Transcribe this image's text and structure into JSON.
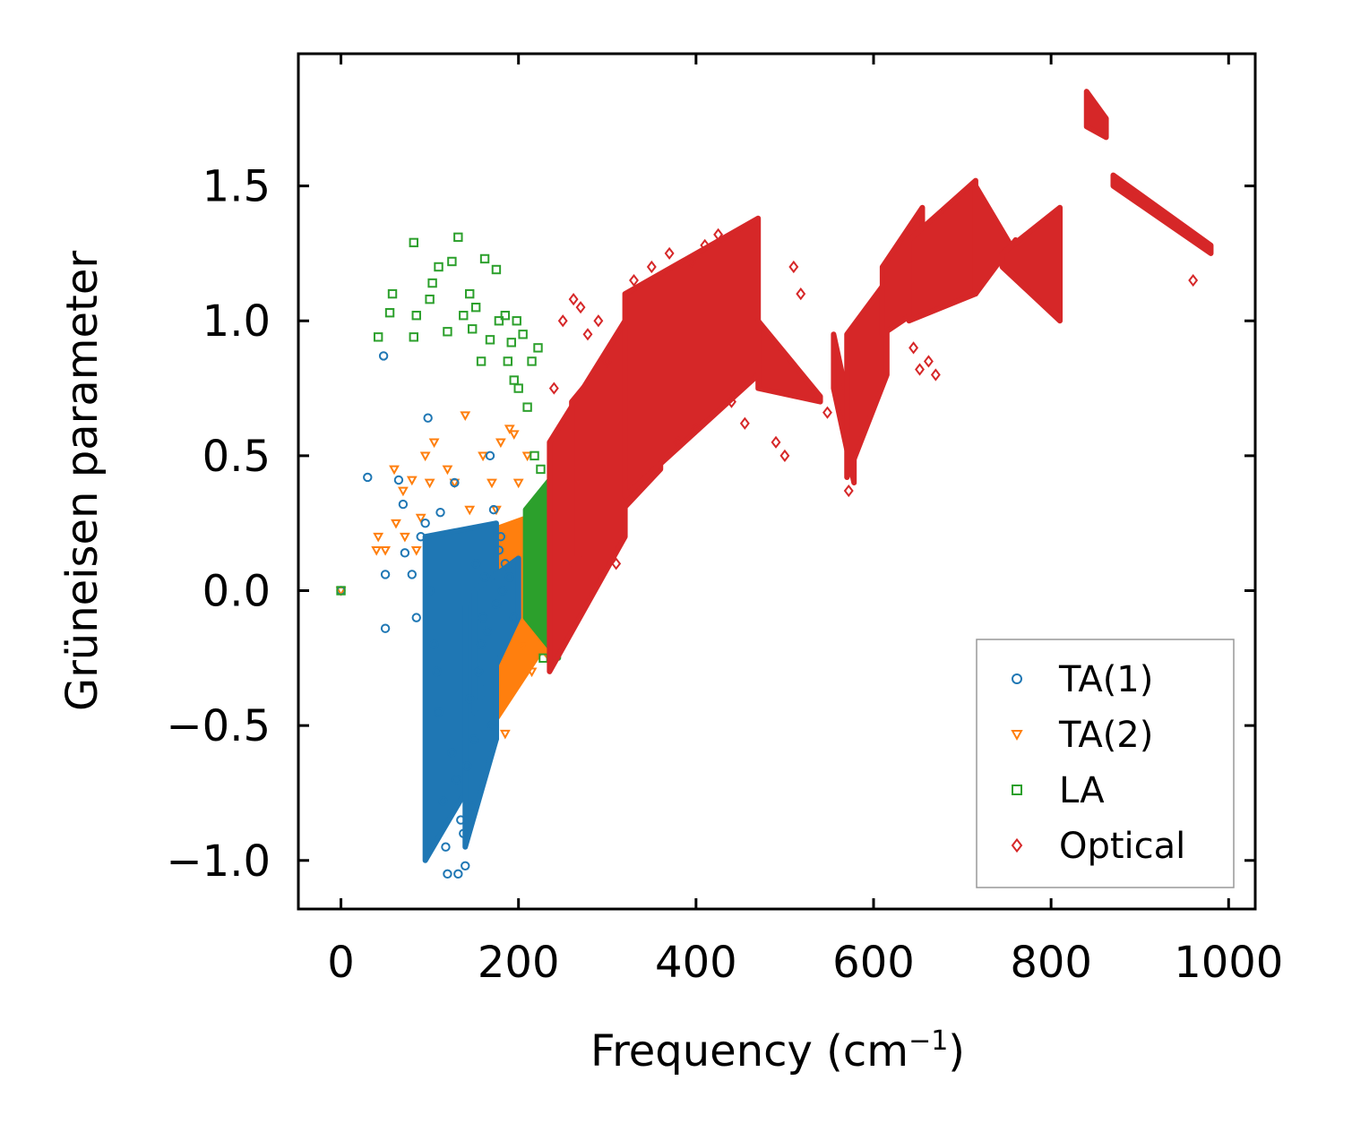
{
  "chart_data": {
    "type": "scatter",
    "title": "",
    "xlabel": "Frequency (cm",
    "xlabel_superscript": "−1",
    "xlabel_suffix": ")",
    "ylabel": "Grüneisen parameter",
    "xlim": [
      -48,
      1030
    ],
    "ylim": [
      -1.18,
      1.99
    ],
    "xticks": [
      0,
      200,
      400,
      600,
      800,
      1000
    ],
    "xtick_labels": [
      "0",
      "200",
      "400",
      "600",
      "800",
      "1000"
    ],
    "yticks": [
      -1.0,
      -0.5,
      0.0,
      0.5,
      1.0,
      1.5
    ],
    "ytick_labels": [
      "−1.0",
      "−0.5",
      "0.0",
      "0.5",
      "1.0",
      "1.5"
    ],
    "grid": false,
    "legend_position": "bottom-right",
    "series": [
      {
        "name": "TA(1)",
        "marker": "circle",
        "color": "#1f77b4",
        "points": [
          [
            0,
            0
          ],
          [
            30,
            0.42
          ],
          [
            48,
            0.87
          ],
          [
            50,
            0.06
          ],
          [
            50,
            -0.14
          ],
          [
            65,
            0.41
          ],
          [
            70,
            0.32
          ],
          [
            72,
            0.14
          ],
          [
            80,
            0.06
          ],
          [
            85,
            -0.1
          ],
          [
            90,
            0.2
          ],
          [
            95,
            0.25
          ],
          [
            98,
            0.64
          ],
          [
            100,
            0.0
          ],
          [
            105,
            -0.2
          ],
          [
            108,
            -0.3
          ],
          [
            110,
            -0.45
          ],
          [
            112,
            0.29
          ],
          [
            115,
            -0.78
          ],
          [
            118,
            -0.95
          ],
          [
            120,
            -1.05
          ],
          [
            125,
            -0.6
          ],
          [
            128,
            0.4
          ],
          [
            130,
            -0.7
          ],
          [
            132,
            -1.05
          ],
          [
            135,
            -0.85
          ],
          [
            138,
            -0.9
          ],
          [
            140,
            -1.02
          ],
          [
            142,
            -0.65
          ],
          [
            145,
            -0.4
          ],
          [
            148,
            -0.8
          ],
          [
            150,
            -0.55
          ],
          [
            152,
            0.1
          ],
          [
            155,
            -0.3
          ],
          [
            158,
            -0.2
          ],
          [
            160,
            -0.1
          ],
          [
            162,
            0.05
          ],
          [
            165,
            -0.15
          ],
          [
            168,
            0.5
          ],
          [
            170,
            -0.5
          ],
          [
            172,
            0.3
          ],
          [
            175,
            -0.05
          ],
          [
            178,
            0.15
          ],
          [
            180,
            0.2
          ],
          [
            182,
            0.0
          ],
          [
            185,
            0.1
          ],
          [
            190,
            0.05
          ],
          [
            195,
            -0.1
          ]
        ],
        "bands": [
          {
            "x_start": 95,
            "x_end": 175,
            "y_low_start": -1.0,
            "y_low_end": -0.55,
            "y_high_start": 0.2,
            "y_high_end": 0.25
          },
          {
            "x_start": 140,
            "x_end": 175,
            "y_low_start": -0.95,
            "y_low_end": -0.55,
            "y_high_start": -0.05,
            "y_high_end": 0.1
          },
          {
            "x_start": 150,
            "x_end": 200,
            "y_low_start": -0.45,
            "y_low_end": -0.1,
            "y_high_start": 0.0,
            "y_high_end": 0.12
          }
        ]
      },
      {
        "name": "TA(2)",
        "marker": "triangle_down",
        "color": "#ff7f0e",
        "points": [
          [
            0,
            0
          ],
          [
            40,
            0.15
          ],
          [
            42,
            0.2
          ],
          [
            50,
            0.15
          ],
          [
            60,
            0.45
          ],
          [
            62,
            0.25
          ],
          [
            70,
            0.37
          ],
          [
            72,
            0.2
          ],
          [
            80,
            0.41
          ],
          [
            85,
            0.15
          ],
          [
            90,
            0.27
          ],
          [
            95,
            0.5
          ],
          [
            100,
            0.4
          ],
          [
            105,
            0.55
          ],
          [
            110,
            0.2
          ],
          [
            120,
            0.45
          ],
          [
            128,
            0.4
          ],
          [
            130,
            0.2
          ],
          [
            140,
            0.65
          ],
          [
            145,
            0.3
          ],
          [
            150,
            0.15
          ],
          [
            160,
            0.5
          ],
          [
            170,
            0.4
          ],
          [
            175,
            0.3
          ],
          [
            180,
            0.55
          ],
          [
            185,
            -0.53
          ],
          [
            190,
            0.6
          ],
          [
            195,
            0.58
          ],
          [
            200,
            0.4
          ],
          [
            205,
            -0.2
          ],
          [
            210,
            0.5
          ],
          [
            215,
            -0.3
          ]
        ],
        "bands": [
          {
            "x_start": 150,
            "x_end": 235,
            "y_low_start": 0.1,
            "y_low_end": -0.25,
            "y_high_start": 0.2,
            "y_high_end": 0.3
          },
          {
            "x_start": 170,
            "x_end": 230,
            "y_low_start": -0.5,
            "y_low_end": -0.2,
            "y_high_start": -0.05,
            "y_high_end": 0.0
          }
        ]
      },
      {
        "name": "LA",
        "marker": "square",
        "color": "#2ca02c",
        "points": [
          [
            0,
            0
          ],
          [
            42,
            0.94
          ],
          [
            55,
            1.03
          ],
          [
            58,
            1.1
          ],
          [
            82,
            1.29
          ],
          [
            82,
            0.94
          ],
          [
            85,
            1.02
          ],
          [
            100,
            1.08
          ],
          [
            103,
            1.14
          ],
          [
            110,
            1.2
          ],
          [
            120,
            0.96
          ],
          [
            125,
            1.22
          ],
          [
            132,
            1.31
          ],
          [
            138,
            1.02
          ],
          [
            145,
            1.1
          ],
          [
            148,
            0.97
          ],
          [
            152,
            1.05
          ],
          [
            158,
            0.85
          ],
          [
            162,
            1.23
          ],
          [
            168,
            0.93
          ],
          [
            175,
            1.19
          ],
          [
            178,
            1.0
          ],
          [
            185,
            1.02
          ],
          [
            188,
            0.85
          ],
          [
            192,
            0.92
          ],
          [
            195,
            0.78
          ],
          [
            198,
            1.0
          ],
          [
            200,
            0.75
          ],
          [
            205,
            0.95
          ],
          [
            210,
            0.68
          ],
          [
            215,
            0.85
          ],
          [
            218,
            0.5
          ],
          [
            222,
            0.9
          ],
          [
            225,
            0.45
          ],
          [
            228,
            -0.25
          ],
          [
            235,
            0.2
          ]
        ],
        "bands": [
          {
            "x_start": 208,
            "x_end": 245,
            "y_low_start": -0.1,
            "y_low_end": -0.25,
            "y_high_start": 0.3,
            "y_high_end": 0.45
          }
        ]
      },
      {
        "name": "Optical",
        "marker": "diamond",
        "color": "#d62728",
        "points": [
          [
            240,
            0.75
          ],
          [
            250,
            1.0
          ],
          [
            262,
            1.08
          ],
          [
            270,
            1.05
          ],
          [
            278,
            0.95
          ],
          [
            290,
            1.0
          ],
          [
            300,
            0.85
          ],
          [
            310,
            0.1
          ],
          [
            330,
            1.15
          ],
          [
            350,
            1.2
          ],
          [
            370,
            1.25
          ],
          [
            380,
            0.55
          ],
          [
            395,
            1.22
          ],
          [
            400,
            0.6
          ],
          [
            410,
            1.28
          ],
          [
            425,
            1.32
          ],
          [
            440,
            0.7
          ],
          [
            455,
            0.62
          ],
          [
            490,
            0.55
          ],
          [
            500,
            0.5
          ],
          [
            510,
            1.2
          ],
          [
            518,
            1.1
          ],
          [
            548,
            0.66
          ],
          [
            572,
            0.37
          ],
          [
            645,
            0.9
          ],
          [
            652,
            0.82
          ],
          [
            662,
            0.85
          ],
          [
            670,
            0.8
          ],
          [
            960,
            1.15
          ]
        ],
        "bands": [
          {
            "x_start": 235,
            "x_end": 320,
            "y_low_start": -0.3,
            "y_low_end": 0.2,
            "y_high_start": 0.55,
            "y_high_end": 1.0
          },
          {
            "x_start": 260,
            "x_end": 360,
            "y_low_start": 0.1,
            "y_low_end": 0.45,
            "y_high_start": 0.7,
            "y_high_end": 1.1
          },
          {
            "x_start": 320,
            "x_end": 470,
            "y_low_start": 0.35,
            "y_low_end": 0.8,
            "y_high_start": 1.1,
            "y_high_end": 1.38
          },
          {
            "x_start": 470,
            "x_end": 540,
            "y_low_start": 0.75,
            "y_low_end": 0.7,
            "y_high_start": 1.0,
            "y_high_end": 0.72
          },
          {
            "x_start": 555,
            "x_end": 578,
            "y_low_start": 0.75,
            "y_low_end": 0.4,
            "y_high_start": 0.95,
            "y_high_end": 0.6
          },
          {
            "x_start": 570,
            "x_end": 615,
            "y_low_start": 0.42,
            "y_low_end": 0.8,
            "y_high_start": 0.95,
            "y_high_end": 1.15
          },
          {
            "x_start": 610,
            "x_end": 655,
            "y_low_start": 0.95,
            "y_low_end": 1.05,
            "y_high_start": 1.2,
            "y_high_end": 1.42
          },
          {
            "x_start": 640,
            "x_end": 715,
            "y_low_start": 1.0,
            "y_low_end": 1.1,
            "y_high_start": 1.3,
            "y_high_end": 1.52
          },
          {
            "x_start": 715,
            "x_end": 760,
            "y_low_start": 1.1,
            "y_low_end": 1.3,
            "y_high_start": 1.5,
            "y_high_end": 1.25
          },
          {
            "x_start": 745,
            "x_end": 810,
            "y_low_start": 1.2,
            "y_low_end": 1.0,
            "y_high_start": 1.25,
            "y_high_end": 1.42
          },
          {
            "x_start": 840,
            "x_end": 862,
            "y_low_start": 1.72,
            "y_low_end": 1.68,
            "y_high_start": 1.85,
            "y_high_end": 1.75
          },
          {
            "x_start": 870,
            "x_end": 980,
            "y_low_start": 1.5,
            "y_low_end": 1.25,
            "y_high_start": 1.54,
            "y_high_end": 1.28
          }
        ]
      }
    ]
  }
}
